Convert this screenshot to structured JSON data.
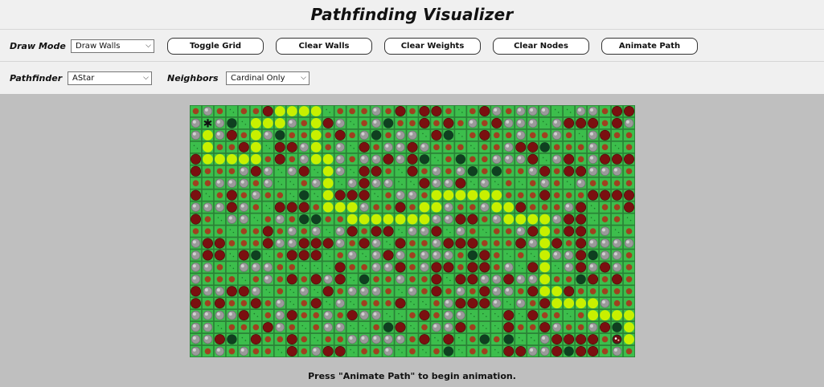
{
  "header": {
    "title": "Pathfinding Visualizer"
  },
  "toolbar": {
    "draw_mode_label": "Draw Mode",
    "draw_mode_value": "Draw Walls",
    "buttons": {
      "toggle_grid": "Toggle Grid",
      "clear_walls": "Clear Walls",
      "clear_weights": "Clear Weights",
      "clear_nodes": "Clear Nodes",
      "animate_path": "Animate Path"
    },
    "pathfinder_label": "Pathfinder",
    "pathfinder_value": "AStar",
    "neighbors_label": "Neighbors",
    "neighbors_value": "Cardinal Only"
  },
  "grid": {
    "cols": 37,
    "rows": 21,
    "start": [
      1,
      1
    ],
    "end": [
      35,
      19
    ],
    "path": [
      [
        1,
        1
      ],
      [
        1,
        2
      ],
      [
        1,
        3
      ],
      [
        1,
        4
      ],
      [
        2,
        4
      ],
      [
        3,
        4
      ],
      [
        4,
        4
      ],
      [
        5,
        4
      ],
      [
        5,
        3
      ],
      [
        5,
        2
      ],
      [
        5,
        1
      ],
      [
        6,
        1
      ],
      [
        7,
        1
      ],
      [
        7,
        0
      ],
      [
        8,
        0
      ],
      [
        9,
        0
      ],
      [
        10,
        0
      ],
      [
        10,
        1
      ],
      [
        10,
        2
      ],
      [
        10,
        3
      ],
      [
        10,
        4
      ],
      [
        11,
        4
      ],
      [
        11,
        5
      ],
      [
        11,
        6
      ],
      [
        11,
        7
      ],
      [
        11,
        8
      ],
      [
        12,
        8
      ],
      [
        13,
        8
      ],
      [
        13,
        9
      ],
      [
        14,
        9
      ],
      [
        15,
        9
      ],
      [
        16,
        9
      ],
      [
        17,
        9
      ],
      [
        18,
        9
      ],
      [
        19,
        9
      ],
      [
        19,
        8
      ],
      [
        20,
        8
      ],
      [
        20,
        7
      ],
      [
        21,
        7
      ],
      [
        22,
        7
      ],
      [
        23,
        7
      ],
      [
        24,
        7
      ],
      [
        25,
        7
      ],
      [
        25,
        8
      ],
      [
        26,
        8
      ],
      [
        26,
        9
      ],
      [
        27,
        9
      ],
      [
        28,
        9
      ],
      [
        29,
        9
      ],
      [
        29,
        10
      ],
      [
        29,
        11
      ],
      [
        29,
        12
      ],
      [
        29,
        13
      ],
      [
        29,
        14
      ],
      [
        29,
        15
      ],
      [
        30,
        15
      ],
      [
        30,
        16
      ],
      [
        31,
        16
      ],
      [
        32,
        16
      ],
      [
        33,
        16
      ],
      [
        33,
        17
      ],
      [
        34,
        17
      ],
      [
        35,
        17
      ],
      [
        36,
        17
      ],
      [
        36,
        18
      ],
      [
        36,
        19
      ],
      [
        35,
        19
      ]
    ],
    "colors": {
      "background": "#2d8a3a",
      "tile": "#3cbe4c",
      "path": "#c8f000",
      "wall": "#7a1010",
      "weight": "#9a9a9a",
      "small_node": "#a04020",
      "visited": "#0f4020"
    }
  },
  "status": {
    "message": "Press \"Animate Path\" to begin animation."
  }
}
